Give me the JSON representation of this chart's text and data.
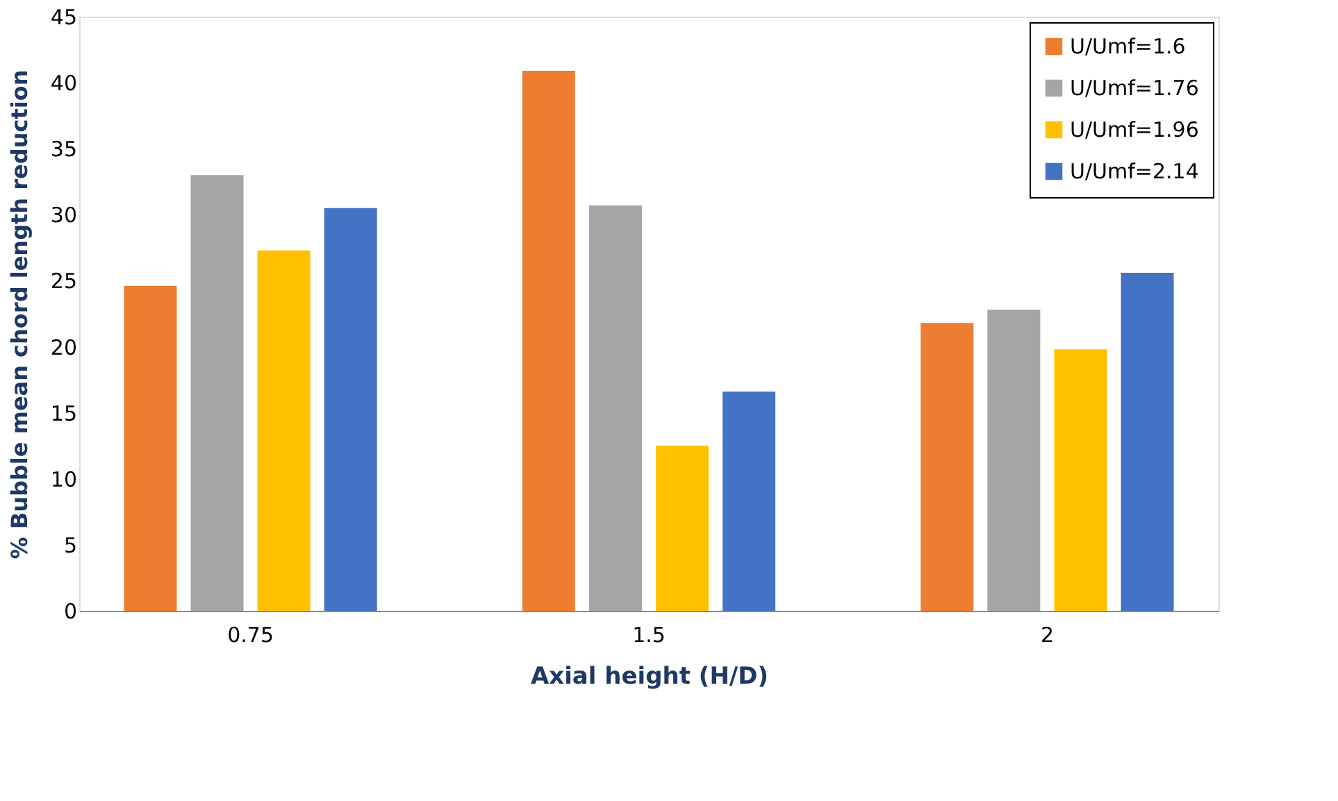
{
  "chart_data": {
    "type": "bar",
    "xlabel": "Axial height (H/D)",
    "ylabel": "% Bubble mean chord length reduction",
    "categories": [
      "0.75",
      "1.5",
      "2"
    ],
    "series": [
      {
        "name": "U/Umf=1.6",
        "color": "#ed7d31",
        "values": [
          24.6,
          40.9,
          21.8
        ]
      },
      {
        "name": "U/Umf=1.76",
        "color": "#a5a5a5",
        "values": [
          33.0,
          30.7,
          22.8
        ]
      },
      {
        "name": "U/Umf=1.96",
        "color": "#ffc000",
        "values": [
          27.3,
          12.5,
          19.8
        ]
      },
      {
        "name": "U/Umf=2.14",
        "color": "#4472c4",
        "values": [
          30.5,
          16.6,
          25.6
        ]
      }
    ],
    "ylim": [
      0,
      45
    ],
    "yticks": [
      0,
      5,
      10,
      15,
      20,
      25,
      30,
      35,
      40,
      45
    ],
    "grid": false,
    "legend": "top right"
  }
}
